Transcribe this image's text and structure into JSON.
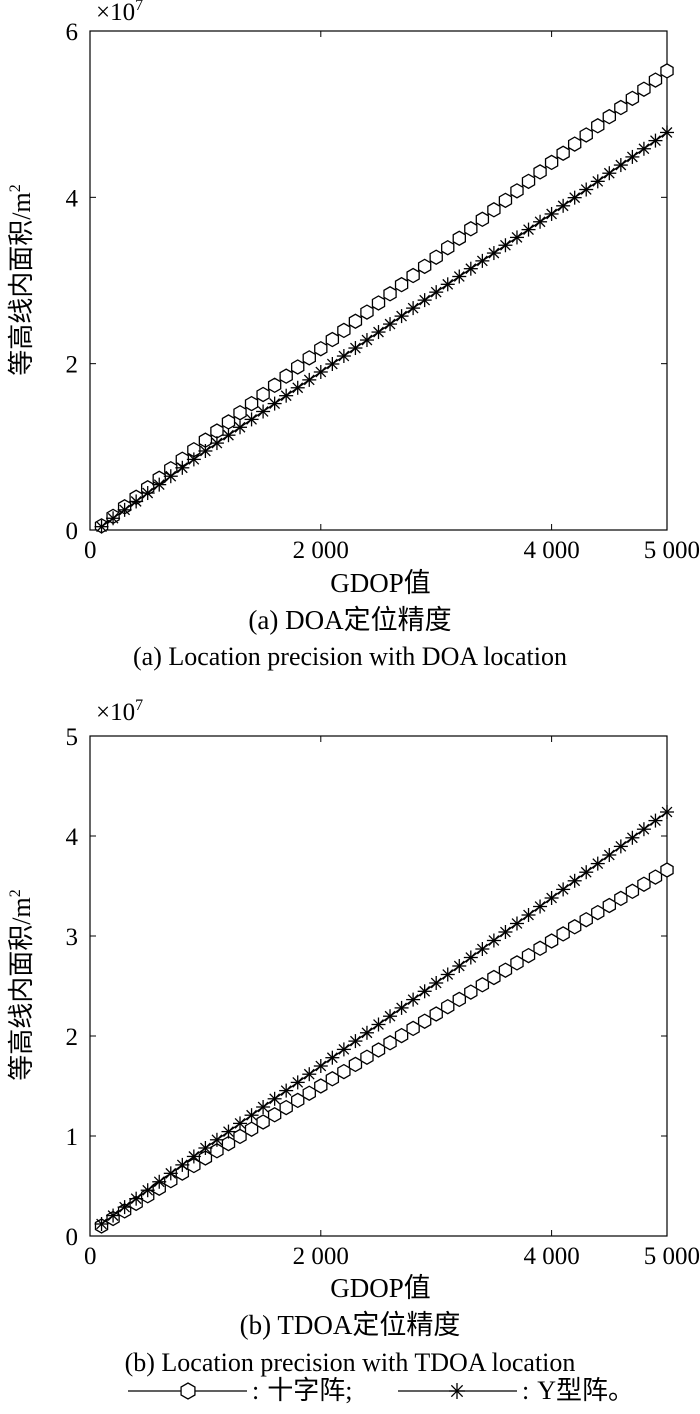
{
  "chart_data": [
    {
      "type": "line",
      "multiplier_label": "×10",
      "multiplier_exponent": "7",
      "ylabel": "等高线内面积/m",
      "ylabel_sup": "2",
      "xlabel": "GDOP值",
      "caption_cn": "(a) DOA定位精度",
      "caption_en": "(a) Location precision with DOA location",
      "xlim": [
        0,
        5000
      ],
      "ylim": [
        0,
        6
      ],
      "xticks": [
        0,
        2000,
        4000,
        5000
      ],
      "xtick_labels": [
        "0",
        "2 000",
        "4 000",
        "5 000"
      ],
      "yticks": [
        0,
        2,
        4,
        6
      ],
      "ytick_labels": [
        "0",
        "2",
        "4",
        "6"
      ],
      "grid": false,
      "series": [
        {
          "name": "十字阵",
          "marker": "hexagon",
          "x": [
            100,
            1000,
            2000,
            3000,
            4000,
            5000
          ],
          "y": [
            0.05,
            1.08,
            2.18,
            3.28,
            4.42,
            5.52
          ]
        },
        {
          "name": "Y型阵",
          "marker": "asterisk",
          "x": [
            100,
            1000,
            2000,
            3000,
            4000,
            5000
          ],
          "y": [
            0.04,
            0.95,
            1.9,
            2.86,
            3.8,
            4.78
          ]
        }
      ]
    },
    {
      "type": "line",
      "multiplier_label": "×10",
      "multiplier_exponent": "7",
      "ylabel": "等高线内面积/m",
      "ylabel_sup": "2",
      "xlabel": "GDOP值",
      "caption_cn": "(b) TDOA定位精度",
      "caption_en": "(b) Location precision with TDOA location",
      "xlim": [
        0,
        5000
      ],
      "ylim": [
        0,
        5
      ],
      "xticks": [
        0,
        2000,
        4000,
        5000
      ],
      "xtick_labels": [
        "0",
        "2 000",
        "4 000",
        "5 000"
      ],
      "yticks": [
        0,
        1,
        2,
        3,
        4,
        5
      ],
      "ytick_labels": [
        "0",
        "1",
        "2",
        "3",
        "4",
        "5"
      ],
      "grid": false,
      "series": [
        {
          "name": "十字阵",
          "marker": "hexagon",
          "x": [
            100,
            1000,
            2000,
            3000,
            4000,
            5000
          ],
          "y": [
            0.1,
            0.78,
            1.5,
            2.22,
            2.95,
            3.66
          ]
        },
        {
          "name": "Y型阵",
          "marker": "asterisk",
          "x": [
            100,
            1000,
            2000,
            3000,
            4000,
            5000
          ],
          "y": [
            0.12,
            0.88,
            1.7,
            2.53,
            3.38,
            4.24
          ]
        }
      ]
    }
  ],
  "legend": {
    "items": [
      {
        "label": "十字阵",
        "sep": ":",
        "suffix": ";"
      },
      {
        "label": "Y型阵",
        "sep": ":",
        "suffix": "。"
      }
    ]
  }
}
